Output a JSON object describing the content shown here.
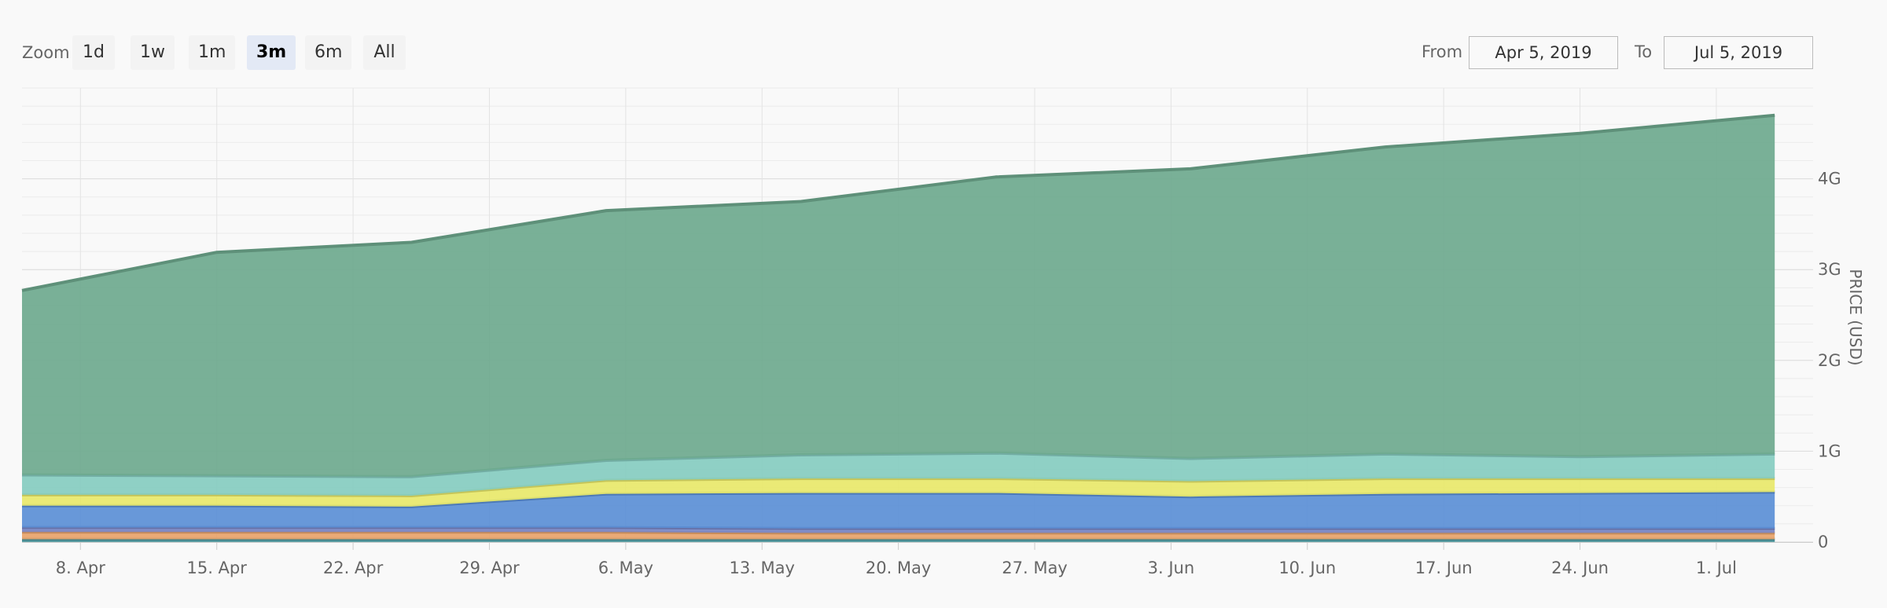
{
  "toolbar": {
    "zoom_label": "Zoom",
    "zoom_buttons": [
      {
        "label": "1d",
        "active": false
      },
      {
        "label": "1w",
        "active": false
      },
      {
        "label": "1m",
        "active": false
      },
      {
        "label": "3m",
        "active": true
      },
      {
        "label": "6m",
        "active": false
      },
      {
        "label": "All",
        "active": false
      }
    ],
    "from_label": "From",
    "from_value": "Apr 5, 2019",
    "to_label": "To",
    "to_value": "Jul 5, 2019"
  },
  "chart_data": {
    "type": "area",
    "stacked": true,
    "title": "",
    "xlabel": "",
    "ylabel": "PRICE (USD)",
    "xlim": [
      "2019-04-05",
      "2019-07-05"
    ],
    "ylim": [
      0,
      5
    ],
    "yticks": [
      0,
      1,
      2,
      3,
      4
    ],
    "ytick_labels": [
      "0",
      "1G",
      "2G",
      "3G",
      "4G"
    ],
    "xtick_labels": [
      {
        "date": "2019-04-08",
        "label": "8. Apr"
      },
      {
        "date": "2019-04-15",
        "label": "15. Apr"
      },
      {
        "date": "2019-04-22",
        "label": "22. Apr"
      },
      {
        "date": "2019-04-29",
        "label": "29. Apr"
      },
      {
        "date": "2019-05-06",
        "label": "6. May"
      },
      {
        "date": "2019-05-13",
        "label": "13. May"
      },
      {
        "date": "2019-05-20",
        "label": "20. May"
      },
      {
        "date": "2019-05-27",
        "label": "27. May"
      },
      {
        "date": "2019-06-03",
        "label": "3. Jun"
      },
      {
        "date": "2019-06-10",
        "label": "10. Jun"
      },
      {
        "date": "2019-06-17",
        "label": "17. Jun"
      },
      {
        "date": "2019-06-24",
        "label": "24. Jun"
      },
      {
        "date": "2019-07-01",
        "label": "1. Jul"
      }
    ],
    "grid": true,
    "legend": "none",
    "dates": [
      "2019-04-05",
      "2019-04-15",
      "2019-04-25",
      "2019-05-05",
      "2019-05-15",
      "2019-05-25",
      "2019-06-04",
      "2019-06-14",
      "2019-06-24",
      "2019-07-04"
    ],
    "series": [
      {
        "color": "#4f9aa0",
        "values": [
          0.03,
          0.03,
          0.03,
          0.03,
          0.03,
          0.03,
          0.03,
          0.03,
          0.03,
          0.03
        ]
      },
      {
        "color": "#e8a36a",
        "values": [
          0.08,
          0.08,
          0.08,
          0.08,
          0.07,
          0.07,
          0.07,
          0.07,
          0.07,
          0.07
        ]
      },
      {
        "color": "#7a88c8",
        "values": [
          0.05,
          0.05,
          0.05,
          0.05,
          0.05,
          0.05,
          0.05,
          0.05,
          0.05,
          0.05
        ]
      },
      {
        "color": "#5b8fd6",
        "values": [
          0.24,
          0.24,
          0.23,
          0.37,
          0.39,
          0.39,
          0.35,
          0.38,
          0.39,
          0.4
        ]
      },
      {
        "color": "#e8e86a",
        "values": [
          0.12,
          0.12,
          0.12,
          0.15,
          0.16,
          0.16,
          0.17,
          0.17,
          0.16,
          0.15
        ]
      },
      {
        "color": "#86ccc0",
        "values": [
          0.22,
          0.21,
          0.21,
          0.22,
          0.26,
          0.28,
          0.25,
          0.27,
          0.24,
          0.27
        ]
      },
      {
        "color": "#6ea98e",
        "values": [
          2.03,
          2.46,
          2.58,
          2.75,
          2.79,
          3.04,
          3.19,
          3.38,
          3.56,
          3.73
        ]
      }
    ]
  }
}
